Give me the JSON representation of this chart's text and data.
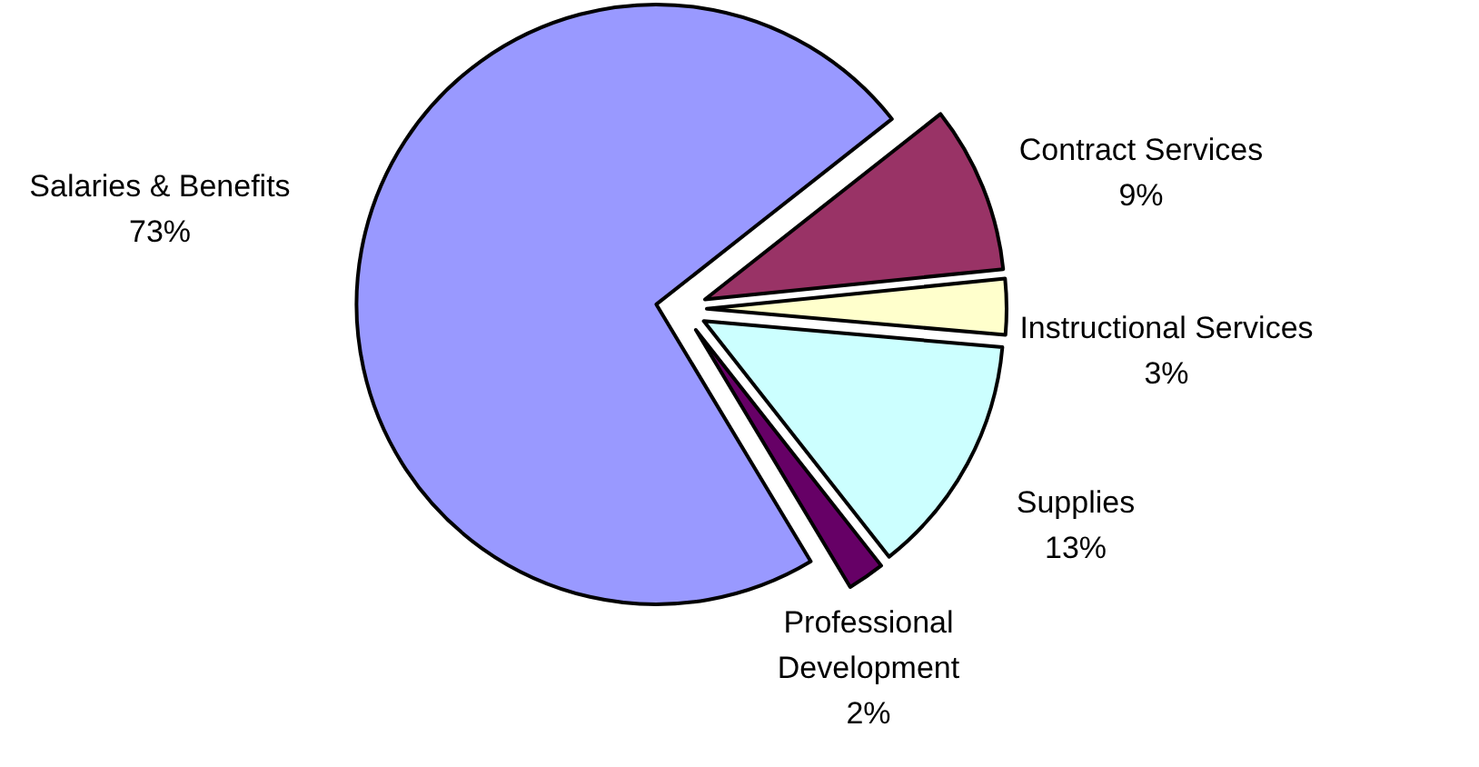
{
  "chart_data": {
    "type": "pie",
    "categories": [
      "Salaries & Benefits",
      "Contract Services",
      "Instructional Services",
      "Supplies",
      "Professional Development"
    ],
    "values": [
      73,
      9,
      3,
      13,
      2
    ],
    "colors": [
      "#9999ff",
      "#993366",
      "#ffffcc",
      "#ccffff",
      "#660066"
    ],
    "value_labels": [
      "73%",
      "9%",
      "3%",
      "13%",
      "2%"
    ]
  }
}
